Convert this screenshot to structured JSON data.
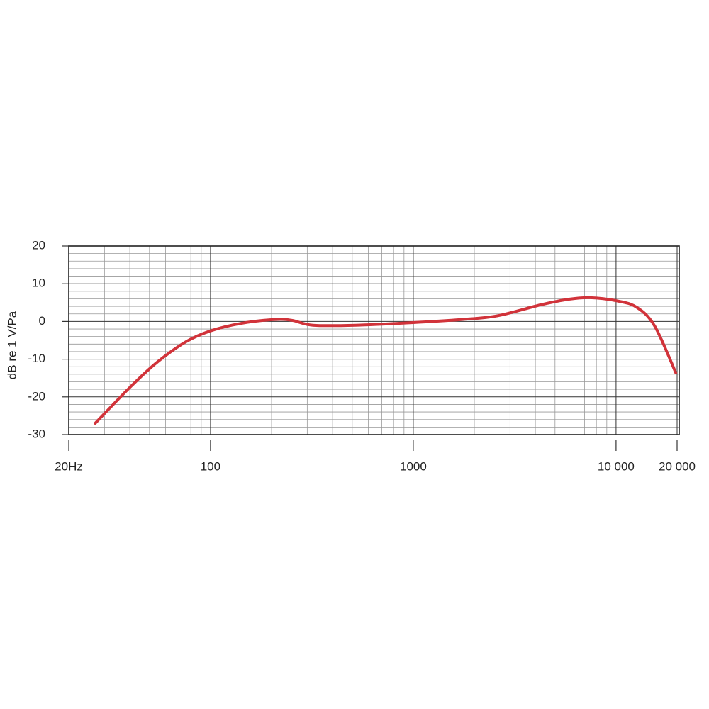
{
  "chart_data": {
    "type": "line",
    "y_label": "dB re 1 V/Pa",
    "log_x": true,
    "grid": true,
    "xlim": [
      20,
      20000
    ],
    "ylim": [
      -30,
      20
    ],
    "xticks": [
      {
        "value": 20,
        "label": "20Hz"
      },
      100,
      1000,
      {
        "value": 10000,
        "label": "10 000"
      },
      {
        "value": 20000,
        "label": "20 000"
      }
    ],
    "yticks": [
      20,
      10,
      0,
      -10,
      -20,
      -30
    ],
    "x_minor_grid": [
      30,
      40,
      50,
      60,
      70,
      80,
      90,
      200,
      300,
      400,
      500,
      600,
      700,
      800,
      900,
      2000,
      3000,
      4000,
      5000,
      6000,
      7000,
      8000,
      9000
    ],
    "y_minor_grid": [
      18,
      16,
      14,
      12,
      8,
      6,
      4,
      2,
      -2,
      -4,
      -6,
      -8,
      -12,
      -14,
      -16,
      -18,
      -22,
      -24,
      -26,
      -28
    ],
    "series": [
      {
        "color": "#d1333a",
        "x": [
          27,
          40,
          54,
          75,
          100,
          142,
          206,
          252,
          320,
          519,
          1000,
          1720,
          2600,
          4240,
          5860,
          7460,
          10000,
          12600,
          15500,
          19700
        ],
        "values": [
          -27,
          -17.5,
          -11,
          -5.5,
          -2.5,
          -0.5,
          0.5,
          0.3,
          -1,
          -1,
          -0.3,
          0.5,
          1.5,
          4.4,
          5.9,
          6.3,
          5.5,
          3.8,
          -1.2,
          -13.6
        ]
      }
    ]
  }
}
